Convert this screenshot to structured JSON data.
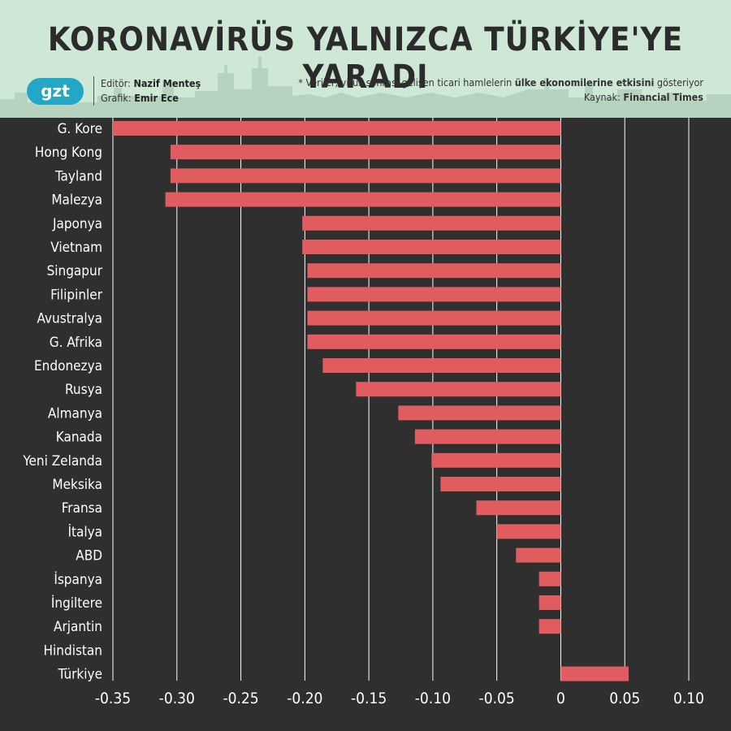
{
  "header": {
    "title": "KORONAVİRÜS YALNIZCA TÜRKİYE'YE YARADI",
    "logo": "gzt",
    "editor_label": "Editör:",
    "editor_name": "Nazif Menteş",
    "graphic_label": "Grafik:",
    "graphic_name": "Emir Ece",
    "note_pre": "* Veriler, virüs sonrası gelişen ticari hamlelerin",
    "note_bold": "ülke ekonomilerine etkisini",
    "note_post": "gösteriyor",
    "source_label": "Kaynak:",
    "source_name": "Financial Times"
  },
  "colors": {
    "background": "#2f2f2f",
    "header_bg": "#cfe8d6",
    "bar": "#e05c5f",
    "grid": "#ffffff",
    "text": "#ffffff"
  },
  "chart_data": {
    "type": "bar",
    "orientation": "horizontal",
    "categories": [
      "G. Kore",
      "Hong Kong",
      "Tayland",
      "Malezya",
      "Japonya",
      "Vietnam",
      "Singapur",
      "Filipinler",
      "Avustralya",
      "G. Afrika",
      "Endonezya",
      "Rusya",
      "Almanya",
      "Kanada",
      "Yeni Zelanda",
      "Meksika",
      "Fransa",
      "İtalya",
      "ABD",
      "İspanya",
      "İngiltere",
      "Arjantin",
      "Hindistan",
      "Türkiye"
    ],
    "values": [
      -0.35,
      -0.305,
      -0.305,
      -0.309,
      -0.202,
      -0.202,
      -0.198,
      -0.198,
      -0.198,
      -0.198,
      -0.186,
      -0.16,
      -0.127,
      -0.114,
      -0.101,
      -0.094,
      -0.066,
      -0.05,
      -0.035,
      -0.017,
      -0.017,
      -0.017,
      0,
      0.053
    ],
    "x_ticks": [
      -0.35,
      -0.3,
      -0.25,
      -0.2,
      -0.15,
      -0.1,
      -0.05,
      0,
      0.05,
      0.1
    ],
    "x_tick_labels": [
      "-0.35",
      "-0.30",
      "-0.25",
      "-0.20",
      "-0.15",
      "-0.10",
      "-0.05",
      "0",
      "0.05",
      "0.10"
    ],
    "xlim": [
      -0.35,
      0.1
    ],
    "grid": true
  }
}
